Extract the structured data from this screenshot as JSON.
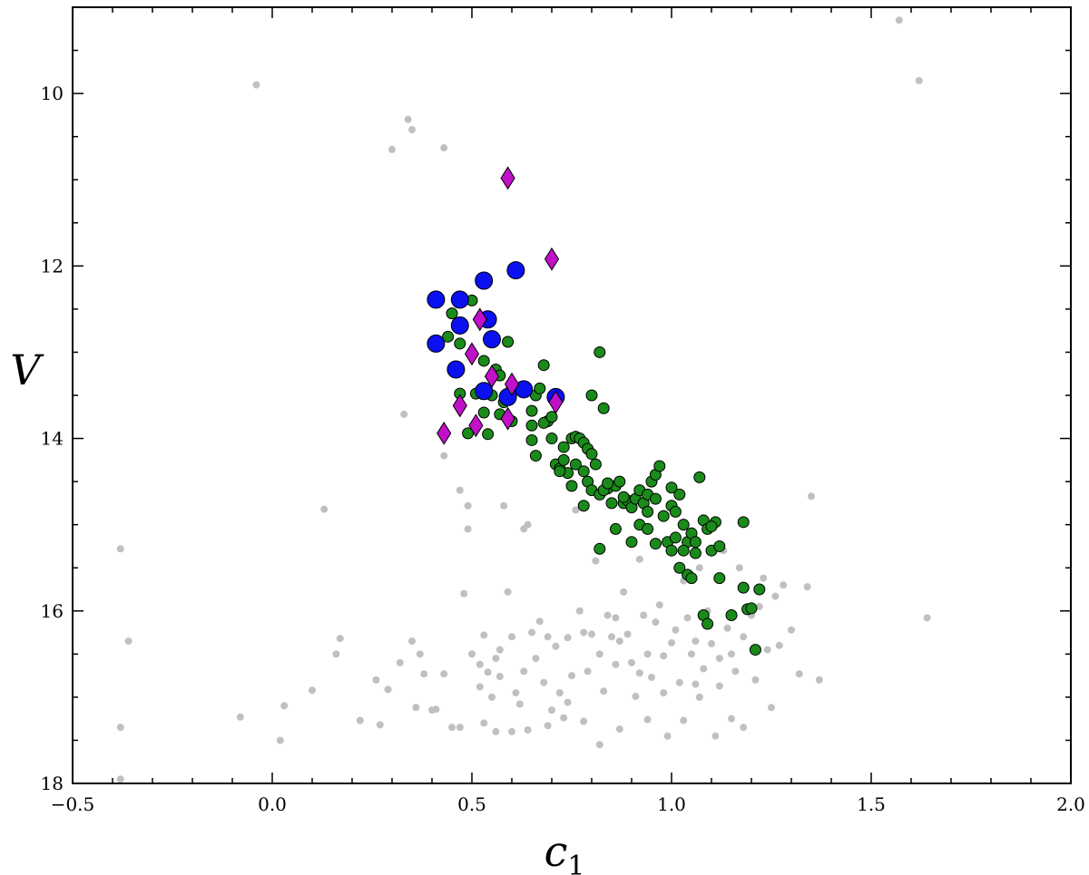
{
  "chart_data": {
    "type": "scatter",
    "xlabel": "c",
    "xlabel_sub": "1",
    "ylabel": "V",
    "xlim": [
      -0.5,
      2.0
    ],
    "ylim": [
      18,
      9.0
    ],
    "y_inverted": true,
    "grid": false,
    "xticks": [
      -0.5,
      0.0,
      0.5,
      1.0,
      1.5,
      2.0
    ],
    "xtick_labels": [
      "−0.5",
      "0.0",
      "0.5",
      "1.0",
      "1.5",
      "2.0"
    ],
    "yticks": [
      10,
      12,
      14,
      16,
      18
    ],
    "ytick_labels": [
      "10",
      "12",
      "14",
      "16",
      "18"
    ],
    "series": [
      {
        "marker": "circle-small",
        "color": "#c0c0c0",
        "points": [
          [
            1.57,
            9.15
          ],
          [
            1.62,
            9.85
          ],
          [
            -0.04,
            9.9
          ],
          [
            0.34,
            10.3
          ],
          [
            0.35,
            10.42
          ],
          [
            0.3,
            10.65
          ],
          [
            0.43,
            10.63
          ],
          [
            0.33,
            13.72
          ],
          [
            0.43,
            14.2
          ],
          [
            0.47,
            14.6
          ],
          [
            0.49,
            14.78
          ],
          [
            0.49,
            15.05
          ],
          [
            0.13,
            14.82
          ],
          [
            -0.38,
            15.28
          ],
          [
            -0.36,
            16.35
          ],
          [
            -0.38,
            17.35
          ],
          [
            -0.38,
            17.95
          ],
          [
            -0.08,
            17.23
          ],
          [
            0.02,
            17.5
          ],
          [
            0.03,
            17.1
          ],
          [
            0.1,
            16.92
          ],
          [
            0.17,
            16.32
          ],
          [
            0.16,
            16.5
          ],
          [
            0.22,
            17.27
          ],
          [
            0.26,
            16.8
          ],
          [
            0.27,
            17.32
          ],
          [
            0.29,
            16.91
          ],
          [
            0.32,
            16.6
          ],
          [
            0.35,
            16.35
          ],
          [
            0.37,
            16.5
          ],
          [
            0.38,
            16.73
          ],
          [
            0.36,
            17.12
          ],
          [
            0.4,
            17.15
          ],
          [
            0.43,
            16.73
          ],
          [
            0.45,
            17.35
          ],
          [
            0.48,
            15.8
          ],
          [
            0.5,
            16.5
          ],
          [
            0.52,
            16.88
          ],
          [
            0.53,
            16.28
          ],
          [
            0.54,
            16.71
          ],
          [
            0.55,
            17.0
          ],
          [
            0.56,
            16.55
          ],
          [
            0.57,
            16.76
          ],
          [
            0.58,
            14.78
          ],
          [
            0.59,
            15.78
          ],
          [
            0.6,
            16.3
          ],
          [
            0.61,
            16.95
          ],
          [
            0.62,
            17.08
          ],
          [
            0.63,
            15.05
          ],
          [
            0.64,
            15.0
          ],
          [
            0.65,
            16.25
          ],
          [
            0.66,
            16.55
          ],
          [
            0.67,
            16.12
          ],
          [
            0.68,
            16.83
          ],
          [
            0.69,
            16.3
          ],
          [
            0.7,
            17.15
          ],
          [
            0.71,
            16.41
          ],
          [
            0.72,
            16.95
          ],
          [
            0.74,
            17.06
          ],
          [
            0.75,
            16.75
          ],
          [
            0.76,
            14.83
          ],
          [
            0.77,
            16.0
          ],
          [
            0.78,
            16.25
          ],
          [
            0.79,
            16.7
          ],
          [
            0.8,
            16.27
          ],
          [
            0.81,
            15.42
          ],
          [
            0.82,
            16.5
          ],
          [
            0.83,
            16.93
          ],
          [
            0.84,
            16.05
          ],
          [
            0.85,
            16.3
          ],
          [
            0.86,
            16.62
          ],
          [
            0.87,
            16.35
          ],
          [
            0.88,
            15.78
          ],
          [
            0.89,
            16.27
          ],
          [
            0.9,
            16.6
          ],
          [
            0.91,
            16.99
          ],
          [
            0.92,
            15.4
          ],
          [
            0.93,
            16.05
          ],
          [
            0.94,
            16.5
          ],
          [
            0.95,
            16.77
          ],
          [
            0.96,
            16.13
          ],
          [
            0.97,
            15.93
          ],
          [
            0.98,
            16.52
          ],
          [
            0.99,
            17.45
          ],
          [
            1.0,
            16.37
          ],
          [
            1.01,
            16.22
          ],
          [
            1.02,
            16.83
          ],
          [
            1.03,
            15.65
          ],
          [
            1.04,
            16.08
          ],
          [
            1.05,
            16.5
          ],
          [
            1.06,
            16.35
          ],
          [
            1.07,
            15.5
          ],
          [
            1.08,
            16.67
          ],
          [
            1.09,
            16.0
          ],
          [
            1.1,
            16.38
          ],
          [
            1.11,
            17.45
          ],
          [
            1.12,
            16.87
          ],
          [
            1.13,
            15.3
          ],
          [
            1.14,
            16.2
          ],
          [
            1.15,
            16.5
          ],
          [
            1.16,
            16.7
          ],
          [
            1.17,
            15.5
          ],
          [
            1.18,
            16.3
          ],
          [
            1.2,
            16.05
          ],
          [
            1.21,
            16.8
          ],
          [
            1.22,
            15.95
          ],
          [
            1.23,
            15.62
          ],
          [
            1.24,
            16.45
          ],
          [
            1.25,
            17.12
          ],
          [
            1.26,
            15.83
          ],
          [
            1.27,
            16.4
          ],
          [
            1.28,
            15.7
          ],
          [
            1.3,
            16.22
          ],
          [
            1.32,
            16.73
          ],
          [
            1.34,
            15.72
          ],
          [
            1.35,
            14.67
          ],
          [
            1.37,
            16.8
          ],
          [
            1.64,
            16.08
          ],
          [
            0.41,
            17.14
          ],
          [
            0.47,
            17.35
          ],
          [
            0.53,
            17.3
          ],
          [
            0.56,
            17.4
          ],
          [
            0.6,
            17.4
          ],
          [
            0.64,
            17.38
          ],
          [
            0.69,
            17.33
          ],
          [
            0.73,
            17.24
          ],
          [
            0.78,
            17.28
          ],
          [
            0.82,
            17.55
          ],
          [
            0.87,
            17.37
          ],
          [
            0.94,
            17.26
          ],
          [
            1.03,
            17.27
          ],
          [
            1.07,
            17.0
          ],
          [
            1.15,
            17.25
          ],
          [
            1.18,
            17.35
          ],
          [
            0.52,
            16.62
          ],
          [
            0.57,
            16.45
          ],
          [
            0.63,
            16.7
          ],
          [
            0.74,
            16.31
          ],
          [
            0.86,
            16.08
          ],
          [
            0.92,
            16.72
          ],
          [
            0.98,
            16.95
          ],
          [
            1.06,
            16.85
          ],
          [
            1.12,
            16.55
          ]
        ]
      },
      {
        "marker": "circle",
        "color": "#1a8a1a",
        "points": [
          [
            0.45,
            12.55
          ],
          [
            0.5,
            12.4
          ],
          [
            0.44,
            12.82
          ],
          [
            0.47,
            12.9
          ],
          [
            0.59,
            12.88
          ],
          [
            0.53,
            13.1
          ],
          [
            0.56,
            13.2
          ],
          [
            0.57,
            13.27
          ],
          [
            0.6,
            13.4
          ],
          [
            0.47,
            13.48
          ],
          [
            0.51,
            13.48
          ],
          [
            0.53,
            13.7
          ],
          [
            0.55,
            13.5
          ],
          [
            0.57,
            13.72
          ],
          [
            0.58,
            13.58
          ],
          [
            0.6,
            13.8
          ],
          [
            0.49,
            13.94
          ],
          [
            0.54,
            13.95
          ],
          [
            0.65,
            13.68
          ],
          [
            0.66,
            13.5
          ],
          [
            0.67,
            13.42
          ],
          [
            0.68,
            13.15
          ],
          [
            0.69,
            13.8
          ],
          [
            0.65,
            13.85
          ],
          [
            0.68,
            13.82
          ],
          [
            0.7,
            13.75
          ],
          [
            0.65,
            14.02
          ],
          [
            0.66,
            14.2
          ],
          [
            0.7,
            14.0
          ],
          [
            0.73,
            14.1
          ],
          [
            0.71,
            14.3
          ],
          [
            0.72,
            14.35
          ],
          [
            0.73,
            14.25
          ],
          [
            0.75,
            14.0
          ],
          [
            0.76,
            13.98
          ],
          [
            0.77,
            14.0
          ],
          [
            0.78,
            14.05
          ],
          [
            0.79,
            14.12
          ],
          [
            0.8,
            14.18
          ],
          [
            0.82,
            13.0
          ],
          [
            0.83,
            13.65
          ],
          [
            0.84,
            14.58
          ],
          [
            0.8,
            13.5
          ],
          [
            0.74,
            14.4
          ],
          [
            0.75,
            14.55
          ],
          [
            0.76,
            14.3
          ],
          [
            0.78,
            14.38
          ],
          [
            0.79,
            14.5
          ],
          [
            0.8,
            14.6
          ],
          [
            0.81,
            14.3
          ],
          [
            0.82,
            14.65
          ],
          [
            0.83,
            14.6
          ],
          [
            0.85,
            14.75
          ],
          [
            0.86,
            14.55
          ],
          [
            0.87,
            14.5
          ],
          [
            0.88,
            14.75
          ],
          [
            0.89,
            14.72
          ],
          [
            0.9,
            14.8
          ],
          [
            0.91,
            14.7
          ],
          [
            0.92,
            14.6
          ],
          [
            0.93,
            14.75
          ],
          [
            0.94,
            14.65
          ],
          [
            0.95,
            14.5
          ],
          [
            0.96,
            14.42
          ],
          [
            0.97,
            14.32
          ],
          [
            0.78,
            14.78
          ],
          [
            0.86,
            15.05
          ],
          [
            0.9,
            15.2
          ],
          [
            0.92,
            15.0
          ],
          [
            0.94,
            14.85
          ],
          [
            0.96,
            14.7
          ],
          [
            0.98,
            14.9
          ],
          [
            0.99,
            15.2
          ],
          [
            1.0,
            14.78
          ],
          [
            1.01,
            14.85
          ],
          [
            1.02,
            14.65
          ],
          [
            1.03,
            15.0
          ],
          [
            1.04,
            15.2
          ],
          [
            1.05,
            15.1
          ],
          [
            1.06,
            15.2
          ],
          [
            1.0,
            15.3
          ],
          [
            1.01,
            15.15
          ],
          [
            1.02,
            15.5
          ],
          [
            1.03,
            15.3
          ],
          [
            1.04,
            15.58
          ],
          [
            1.05,
            15.62
          ],
          [
            1.08,
            14.95
          ],
          [
            1.09,
            15.05
          ],
          [
            1.1,
            15.3
          ],
          [
            1.11,
            14.97
          ],
          [
            1.12,
            15.25
          ],
          [
            1.12,
            15.62
          ],
          [
            0.82,
            15.28
          ],
          [
            0.96,
            15.22
          ],
          [
            1.0,
            14.57
          ],
          [
            1.07,
            14.45
          ],
          [
            1.18,
            14.97
          ],
          [
            1.18,
            15.73
          ],
          [
            1.08,
            16.05
          ],
          [
            1.09,
            16.15
          ],
          [
            1.15,
            16.05
          ],
          [
            1.19,
            15.98
          ],
          [
            1.2,
            15.97
          ],
          [
            1.22,
            15.75
          ],
          [
            1.21,
            16.45
          ],
          [
            0.72,
            14.38
          ],
          [
            0.84,
            14.52
          ],
          [
            0.88,
            14.68
          ],
          [
            0.94,
            15.05
          ],
          [
            1.06,
            15.33
          ],
          [
            1.1,
            15.02
          ]
        ]
      },
      {
        "marker": "circle-large",
        "color": "#0a10f0",
        "points": [
          [
            0.61,
            12.05
          ],
          [
            0.53,
            12.17
          ],
          [
            0.41,
            12.39
          ],
          [
            0.47,
            12.39
          ],
          [
            0.47,
            12.69
          ],
          [
            0.54,
            12.62
          ],
          [
            0.41,
            12.9
          ],
          [
            0.55,
            12.85
          ],
          [
            0.46,
            13.2
          ],
          [
            0.53,
            13.45
          ],
          [
            0.63,
            13.43
          ],
          [
            0.59,
            13.52
          ],
          [
            0.71,
            13.52
          ]
        ]
      },
      {
        "marker": "diamond",
        "color": "#c010c8",
        "points": [
          [
            0.59,
            10.98
          ],
          [
            0.7,
            11.92
          ],
          [
            0.52,
            12.62
          ],
          [
            0.5,
            13.02
          ],
          [
            0.55,
            13.28
          ],
          [
            0.6,
            13.37
          ],
          [
            0.71,
            13.58
          ],
          [
            0.47,
            13.62
          ],
          [
            0.51,
            13.85
          ],
          [
            0.59,
            13.77
          ],
          [
            0.43,
            13.94
          ]
        ]
      }
    ]
  }
}
